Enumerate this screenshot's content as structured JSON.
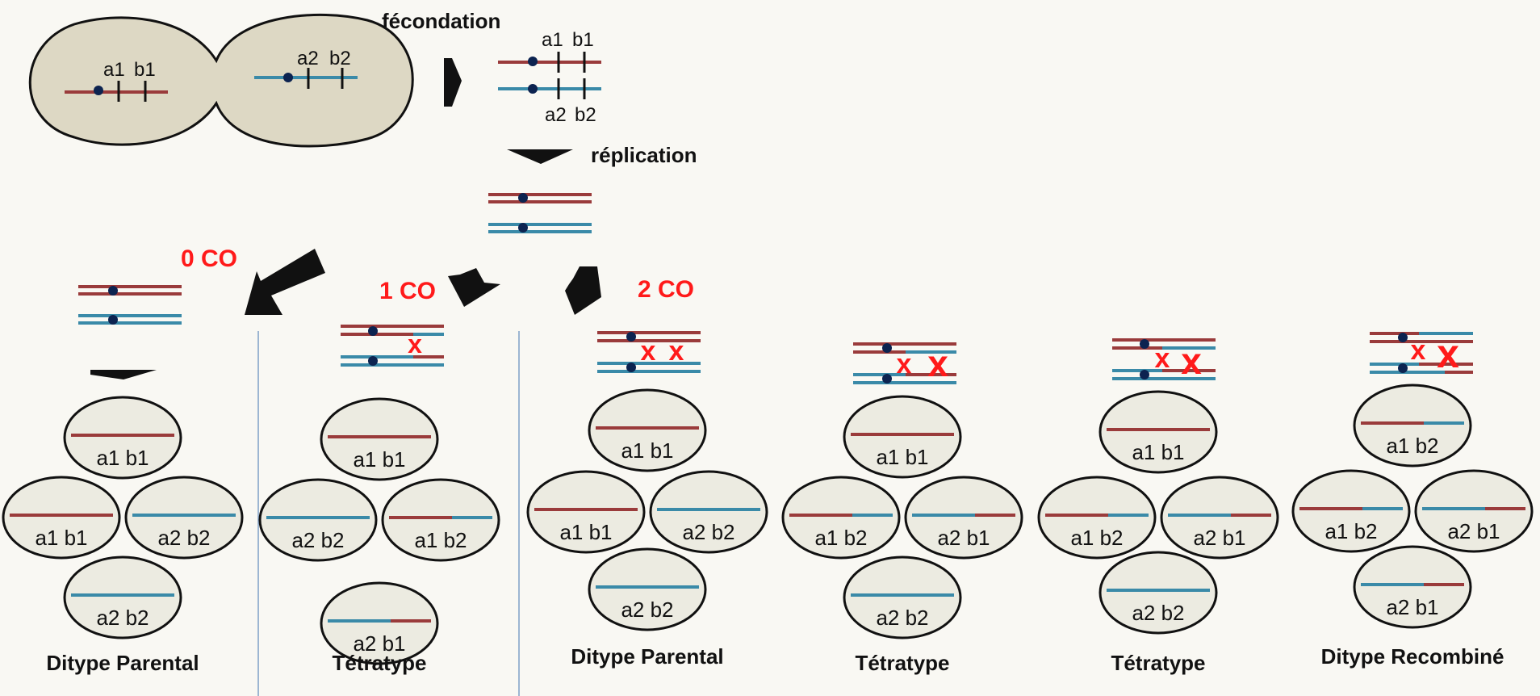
{
  "colors": {
    "parent1": "#9a3b3b",
    "parent2": "#3a8aa8",
    "centromere": "#0c2350",
    "cell_fill": "#ddd8c4",
    "spore_fill": "#ecebe1",
    "crossover": "#ff1a1a",
    "divider": "#7f9fc8"
  },
  "process": {
    "fecondation": "fécondation",
    "replication": "réplication"
  },
  "gametes": {
    "left_label_a": "a1",
    "left_label_b": "b1",
    "right_label_a": "a2",
    "right_label_b": "b2"
  },
  "zygote": {
    "top_label_a": "a1",
    "top_label_b": "b1",
    "bottom_label_a": "a2",
    "bottom_label_b": "b2"
  },
  "branches": {
    "co0": "0 CO",
    "co1": "1 CO",
    "co2": "2 CO"
  },
  "crossover_mark": "x",
  "tetrads": [
    {
      "type": "Ditype Parental",
      "spores": [
        "a1 b1",
        "a1 b1",
        "a2 b2",
        "a2 b2"
      ]
    },
    {
      "type": "Tétratype",
      "spores": [
        "a1 b1",
        "a2 b2",
        "a1 b2",
        "a2 b1"
      ]
    },
    {
      "type": "Ditype Parental",
      "spores": [
        "a1 b1",
        "a1 b1",
        "a2 b2",
        "a2 b2"
      ]
    },
    {
      "type": "Tétratype",
      "spores": [
        "a1 b1",
        "a1 b2",
        "a2 b1",
        "a2 b2"
      ]
    },
    {
      "type": "Tétratype",
      "spores": [
        "a1 b1",
        "a1 b2",
        "a2 b1",
        "a2 b2"
      ]
    },
    {
      "type": "Ditype Recombiné",
      "spores": [
        "a1 b2",
        "a1 b2",
        "a2 b1",
        "a2 b1"
      ]
    }
  ]
}
